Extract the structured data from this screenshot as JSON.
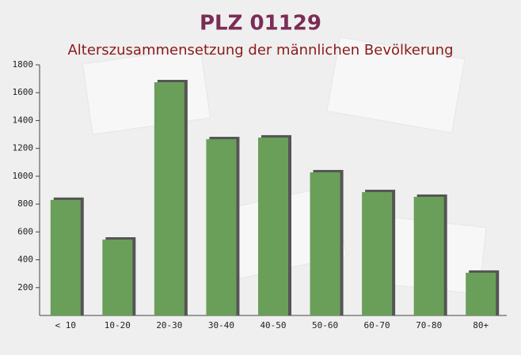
{
  "chart_data": {
    "type": "bar",
    "title": "PLZ 01129",
    "subtitle": "Alterszusammensetzung der männlichen Bevölkerung",
    "categories": [
      "< 10",
      "10-20",
      "20-30",
      "30-40",
      "40-50",
      "50-60",
      "60-70",
      "70-80",
      "80+"
    ],
    "values": [
      830,
      545,
      1675,
      1266,
      1278,
      1028,
      886,
      852,
      307
    ],
    "color": "#6a9f5a",
    "ylim": [
      0,
      1800
    ],
    "yticks": [
      200,
      400,
      600,
      800,
      1000,
      1200,
      1400,
      1600,
      1800
    ]
  }
}
